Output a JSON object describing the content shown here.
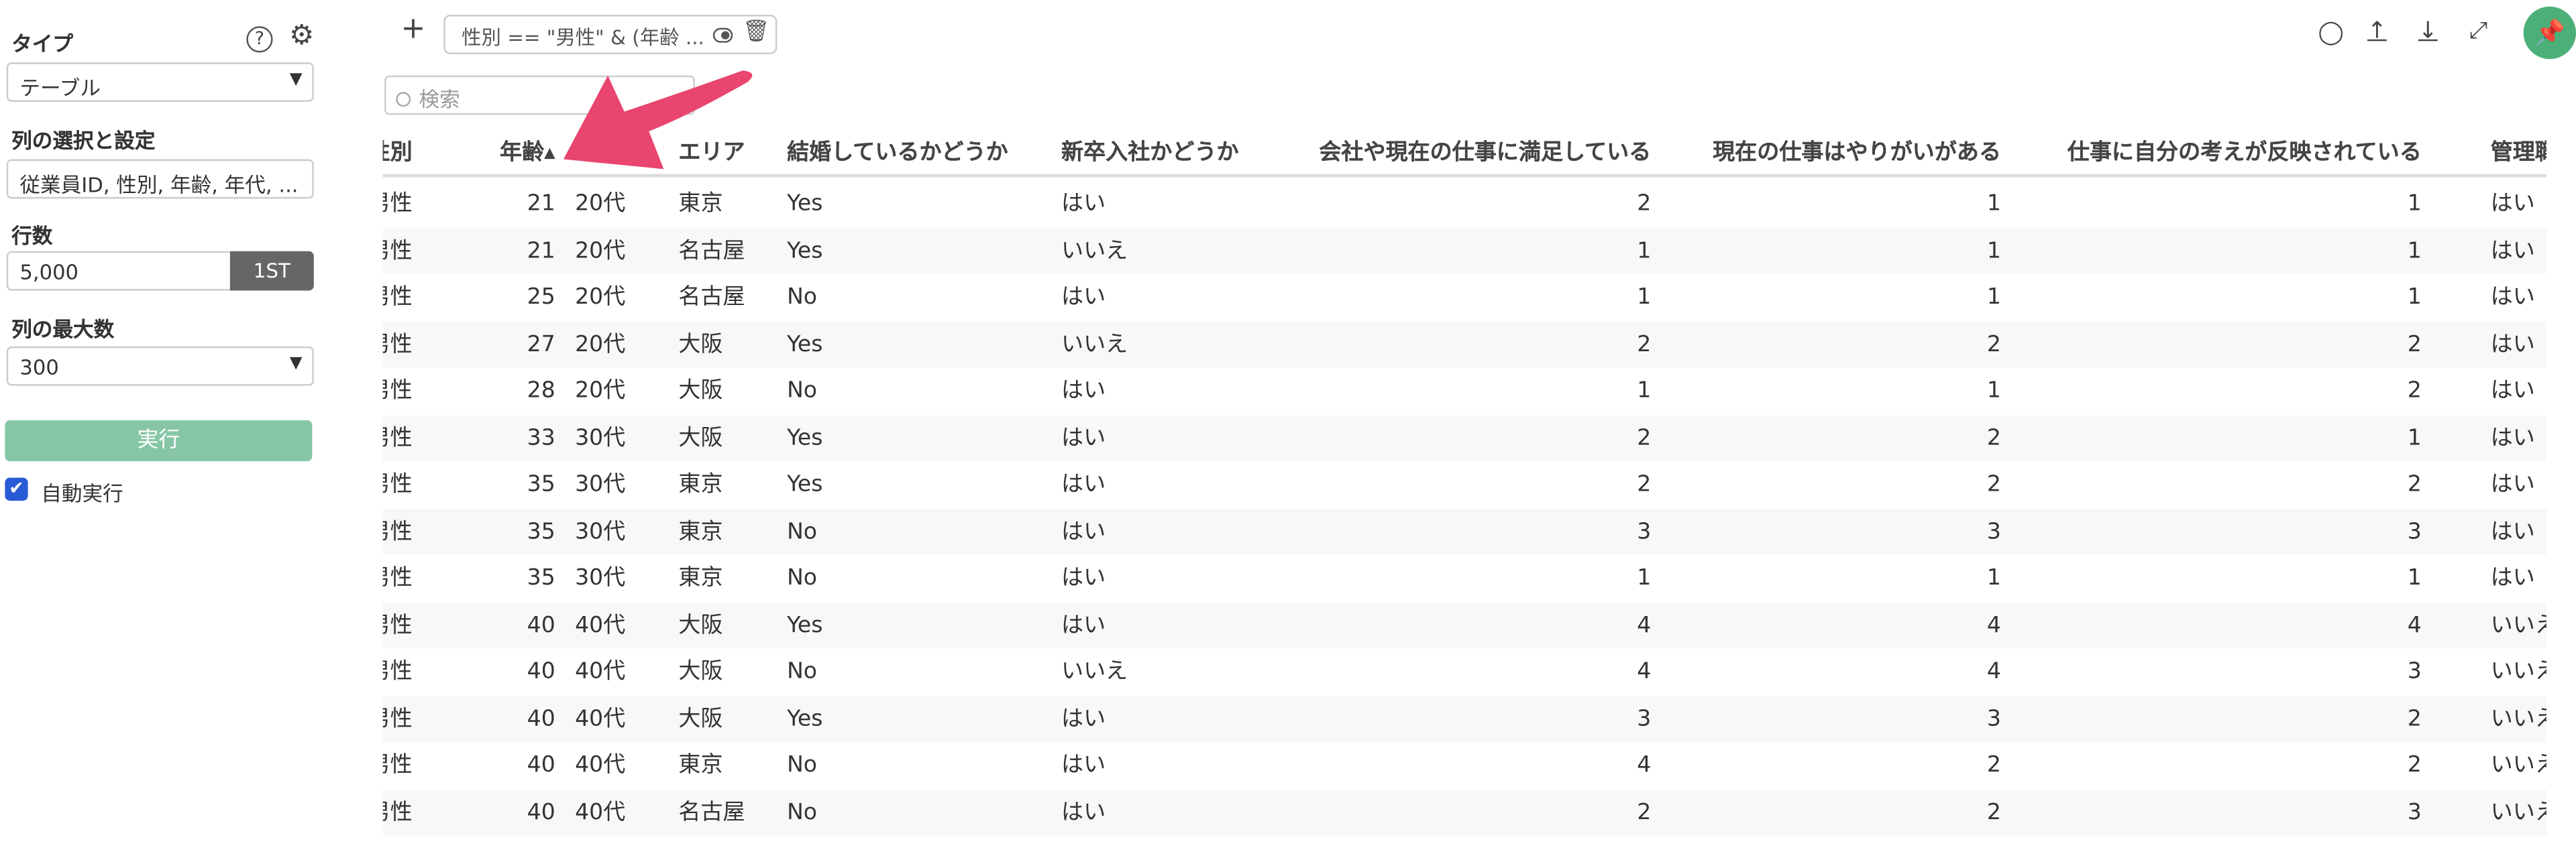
{
  "sidebar": {
    "type_label": "タイプ",
    "type_value": "テーブル",
    "columns_label": "列の選択と設定",
    "columns_value": "従業員ID, 性別, 年齢, 年代, ...",
    "rows_label": "行数",
    "rows_value": "5,000",
    "rows_button": "1ST",
    "max_cols_label": "列の最大数",
    "max_cols_value": "300",
    "run_button": "実行",
    "auto_run_label": "自動実行",
    "auto_run_checked": true
  },
  "toolbar": {
    "add": "+",
    "filter_text": "性別 == \"男性\" & (年齢 ...",
    "search_placeholder": "検索"
  },
  "colors": {
    "accent": "#4caf78",
    "run_button": "#86c6a6",
    "arrow": "#e8456f",
    "checkbox": "#2a5bd7"
  },
  "table": {
    "headers": [
      "性別",
      "年齢▴",
      "年代",
      "エリア",
      "結婚しているかどうか",
      "新卒入社かどうか",
      "会社や現在の仕事に満足している",
      "現在の仕事はやりがいがある",
      "仕事に自分の考えが反映されている",
      "管理職"
    ],
    "sorted_column": "年齢",
    "rows": [
      [
        "男性",
        "21",
        "20代",
        "東京",
        "Yes",
        "はい",
        "2",
        "1",
        "1",
        "はい"
      ],
      [
        "男性",
        "21",
        "20代",
        "名古屋",
        "Yes",
        "いいえ",
        "1",
        "1",
        "1",
        "はい"
      ],
      [
        "男性",
        "25",
        "20代",
        "名古屋",
        "No",
        "はい",
        "1",
        "1",
        "1",
        "はい"
      ],
      [
        "男性",
        "27",
        "20代",
        "大阪",
        "Yes",
        "いいえ",
        "2",
        "2",
        "2",
        "はい"
      ],
      [
        "男性",
        "28",
        "20代",
        "大阪",
        "No",
        "はい",
        "1",
        "1",
        "2",
        "はい"
      ],
      [
        "男性",
        "33",
        "30代",
        "大阪",
        "Yes",
        "はい",
        "2",
        "2",
        "1",
        "はい"
      ],
      [
        "男性",
        "35",
        "30代",
        "東京",
        "Yes",
        "はい",
        "2",
        "2",
        "2",
        "はい"
      ],
      [
        "男性",
        "35",
        "30代",
        "東京",
        "No",
        "はい",
        "3",
        "3",
        "3",
        "はい"
      ],
      [
        "男性",
        "35",
        "30代",
        "東京",
        "No",
        "はい",
        "1",
        "1",
        "1",
        "はい"
      ],
      [
        "男性",
        "40",
        "40代",
        "大阪",
        "Yes",
        "はい",
        "4",
        "4",
        "4",
        "いいえ"
      ],
      [
        "男性",
        "40",
        "40代",
        "大阪",
        "No",
        "いいえ",
        "4",
        "4",
        "3",
        "いいえ"
      ],
      [
        "男性",
        "40",
        "40代",
        "大阪",
        "Yes",
        "はい",
        "3",
        "3",
        "2",
        "いいえ"
      ],
      [
        "男性",
        "40",
        "40代",
        "東京",
        "No",
        "はい",
        "4",
        "2",
        "2",
        "いいえ"
      ],
      [
        "男性",
        "40",
        "40代",
        "名古屋",
        "No",
        "はい",
        "2",
        "2",
        "3",
        "いいえ"
      ]
    ]
  }
}
